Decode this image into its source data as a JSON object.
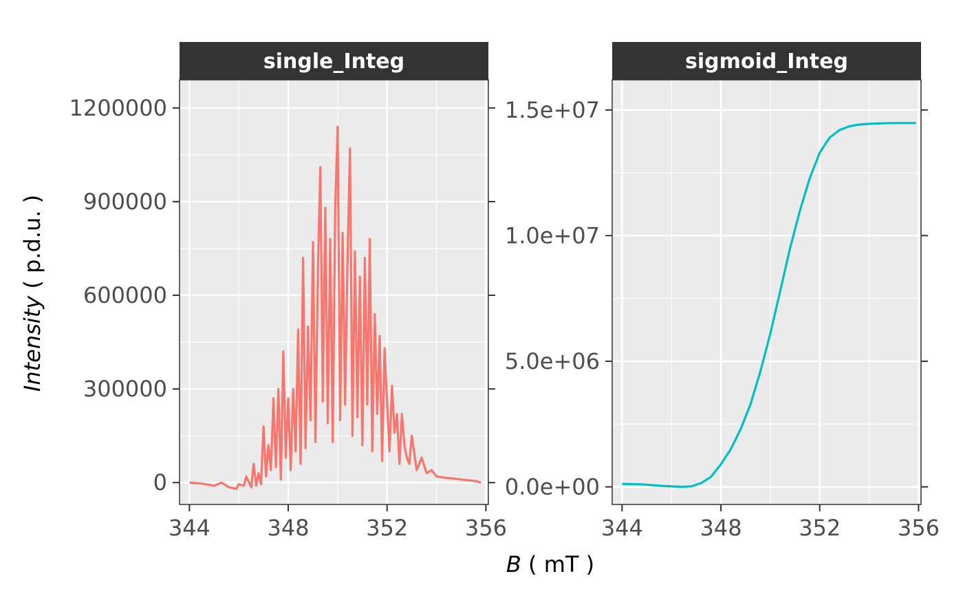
{
  "chart_data": [
    {
      "type": "line",
      "facet": "single_Integ",
      "color": "#F8766D",
      "xlim": [
        343.6,
        356.1
      ],
      "ylim": [
        -70000,
        1290000
      ],
      "x_ticks": [
        344,
        348,
        352,
        356
      ],
      "y_ticks": [
        0,
        300000,
        600000,
        900000,
        1200000
      ],
      "y_tick_labels": [
        "0",
        "300000",
        "600000",
        "900000",
        "1200000"
      ],
      "series": [
        {
          "x": [
            344.0,
            344.5,
            345.0,
            345.3,
            345.6,
            345.9,
            346.0,
            346.2,
            346.3,
            346.5,
            346.6,
            346.7,
            346.8,
            346.9,
            347.0,
            347.1,
            347.2,
            347.3,
            347.4,
            347.5,
            347.6,
            347.7,
            347.8,
            347.9,
            348.0,
            348.1,
            348.2,
            348.3,
            348.4,
            348.5,
            348.6,
            348.7,
            348.8,
            348.9,
            349.0,
            349.1,
            349.2,
            349.3,
            349.4,
            349.5,
            349.6,
            349.7,
            349.8,
            349.9,
            350.0,
            350.1,
            350.2,
            350.3,
            350.4,
            350.5,
            350.6,
            350.7,
            350.8,
            350.9,
            351.0,
            351.1,
            351.2,
            351.3,
            351.4,
            351.5,
            351.6,
            351.7,
            351.8,
            351.9,
            352.0,
            352.1,
            352.2,
            352.3,
            352.4,
            352.5,
            352.6,
            352.7,
            352.8,
            352.9,
            353.0,
            353.2,
            353.4,
            353.6,
            353.8,
            354.0,
            354.4,
            354.8,
            355.2,
            355.6,
            355.8
          ],
          "y": [
            0,
            -3000,
            -10000,
            0,
            -15000,
            -20000,
            -5000,
            -10000,
            20000,
            -15000,
            60000,
            -10000,
            30000,
            -5000,
            180000,
            20000,
            120000,
            40000,
            270000,
            50000,
            300000,
            10000,
            420000,
            80000,
            270000,
            40000,
            300000,
            100000,
            490000,
            60000,
            720000,
            110000,
            500000,
            200000,
            770000,
            130000,
            680000,
            1010000,
            260000,
            880000,
            190000,
            780000,
            130000,
            880000,
            1140000,
            200000,
            800000,
            250000,
            720000,
            1070000,
            150000,
            740000,
            210000,
            660000,
            120000,
            720000,
            250000,
            780000,
            100000,
            540000,
            220000,
            470000,
            70000,
            430000,
            260000,
            100000,
            310000,
            160000,
            220000,
            60000,
            220000,
            120000,
            80000,
            60000,
            150000,
            40000,
            80000,
            30000,
            40000,
            20000,
            15000,
            12000,
            8000,
            5000,
            0
          ]
        }
      ]
    },
    {
      "type": "line",
      "facet": "sigmoid_Integ",
      "color": "#00BFC4",
      "xlim": [
        343.6,
        356.1
      ],
      "ylim": [
        -700000,
        16200000
      ],
      "x_ticks": [
        344,
        348,
        352,
        356
      ],
      "y_ticks": [
        0,
        5000000,
        10000000,
        15000000
      ],
      "y_tick_labels": [
        "0.0e+00",
        "5.0e+06",
        "1.0e+07",
        "1.5e+07"
      ],
      "series": [
        {
          "x": [
            344.0,
            344.8,
            345.6,
            346.4,
            346.8,
            347.2,
            347.6,
            348.0,
            348.4,
            348.8,
            349.2,
            349.6,
            350.0,
            350.4,
            350.8,
            351.2,
            351.6,
            352.0,
            352.4,
            352.8,
            353.2,
            353.6,
            354.0,
            354.5,
            355.0,
            355.5,
            355.9
          ],
          "y": [
            120000,
            100000,
            40000,
            0,
            20000,
            150000,
            400000,
            900000,
            1500000,
            2300000,
            3300000,
            4600000,
            6100000,
            7800000,
            9500000,
            11000000,
            12300000,
            13300000,
            13900000,
            14200000,
            14350000,
            14420000,
            14450000,
            14470000,
            14480000,
            14480000,
            14480000
          ]
        }
      ]
    }
  ],
  "strips": [
    "single_Integ",
    "sigmoid_Integ"
  ],
  "axis": {
    "x_title_var": "B",
    "x_title_unit": " ( mT )",
    "y_title_var": "Intensity",
    "y_title_unit": " ( p.d.u. )"
  }
}
